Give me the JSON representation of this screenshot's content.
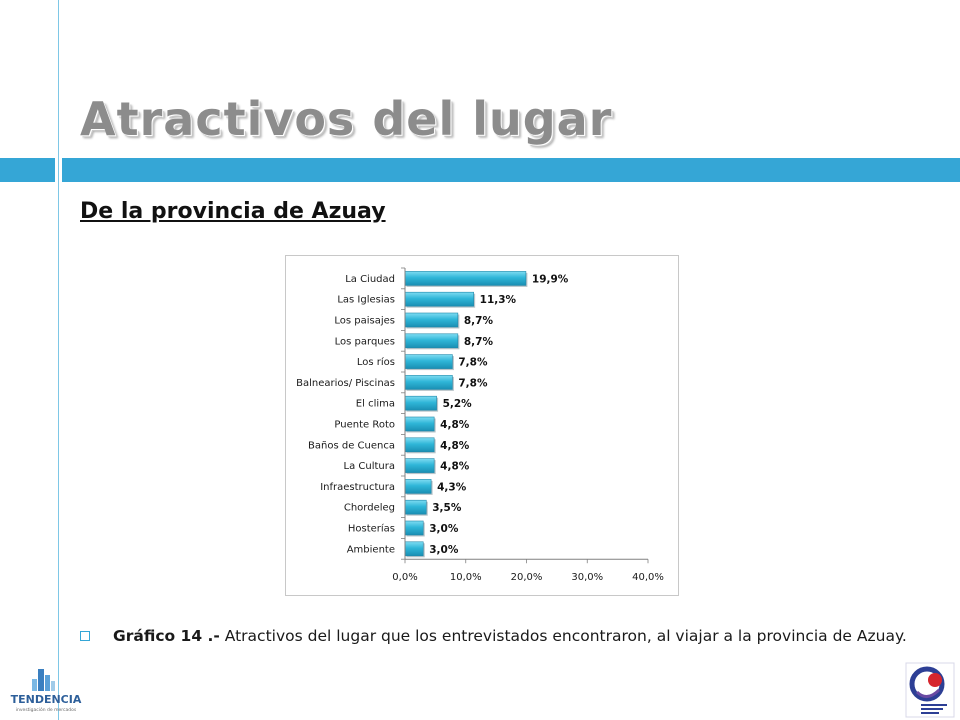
{
  "slide": {
    "title": "Atractivos del lugar",
    "subtitle": "De la provincia de Azuay",
    "caption_lead": "Gráfico 14 .-",
    "caption_text": " Atractivos del lugar que los entrevistados encontraron, al viajar a la provincia de Azuay.",
    "logo_left_text": "TENDENCIA",
    "logo_left_tagline": "investigación de mercados",
    "logo_right_text": "Empresa Metropolitana Quito Turismo"
  },
  "colors": {
    "accent": "#35a6d6",
    "bar_fill": "#2fb6d8",
    "title": "#8c8c8c"
  },
  "chart_data": {
    "type": "bar",
    "orientation": "horizontal",
    "categories": [
      "La Ciudad",
      "Las Iglesias",
      "Los paisajes",
      "Los parques",
      "Los ríos",
      "Balnearios/ Piscinas",
      "El clima",
      "Puente Roto",
      "Baños de Cuenca",
      "La Cultura",
      "Infraestructura",
      "Chordeleg",
      "Hosterías",
      "Ambiente"
    ],
    "values": [
      19.9,
      11.3,
      8.7,
      8.7,
      7.8,
      7.8,
      5.2,
      4.8,
      4.8,
      4.8,
      4.3,
      3.5,
      3.0,
      3.0
    ],
    "value_labels": [
      "19,9%",
      "11,3%",
      "8,7%",
      "8,7%",
      "7,8%",
      "7,8%",
      "5,2%",
      "4,8%",
      "4,8%",
      "4,8%",
      "4,3%",
      "3,5%",
      "3,0%",
      "3,0%"
    ],
    "x_ticks": [
      "0,0%",
      "10,0%",
      "20,0%",
      "30,0%",
      "40,0%"
    ],
    "xlim": [
      0,
      40
    ],
    "title": "",
    "xlabel": "",
    "ylabel": "",
    "grid": false,
    "legend": "none"
  }
}
